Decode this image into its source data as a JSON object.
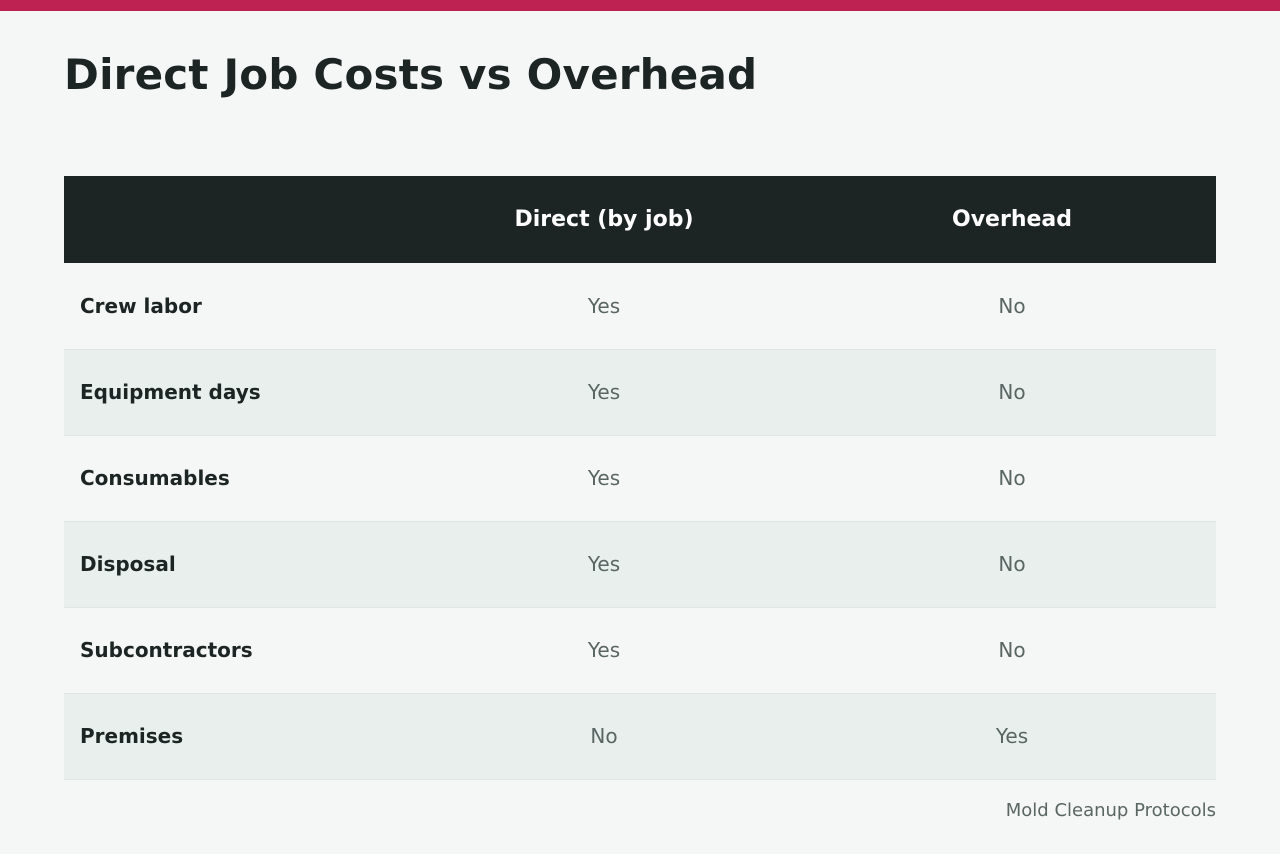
{
  "colors": {
    "accent_bar": "#bd2252",
    "header_background": "#1c2523",
    "row_alt_background": "#e8efec",
    "page_background": "#f5f7f6"
  },
  "title": "Direct Job Costs vs Overhead",
  "table": {
    "headers": [
      "",
      "Direct (by job)",
      "Overhead"
    ],
    "rows": [
      {
        "label": "Crew labor",
        "direct": "Yes",
        "overhead": "No"
      },
      {
        "label": "Equipment days",
        "direct": "Yes",
        "overhead": "No"
      },
      {
        "label": "Consumables",
        "direct": "Yes",
        "overhead": "No"
      },
      {
        "label": "Disposal",
        "direct": "Yes",
        "overhead": "No"
      },
      {
        "label": "Subcontractors",
        "direct": "Yes",
        "overhead": "No"
      },
      {
        "label": "Premises",
        "direct": "No",
        "overhead": "Yes"
      }
    ]
  },
  "source": "Mold Cleanup Protocols"
}
